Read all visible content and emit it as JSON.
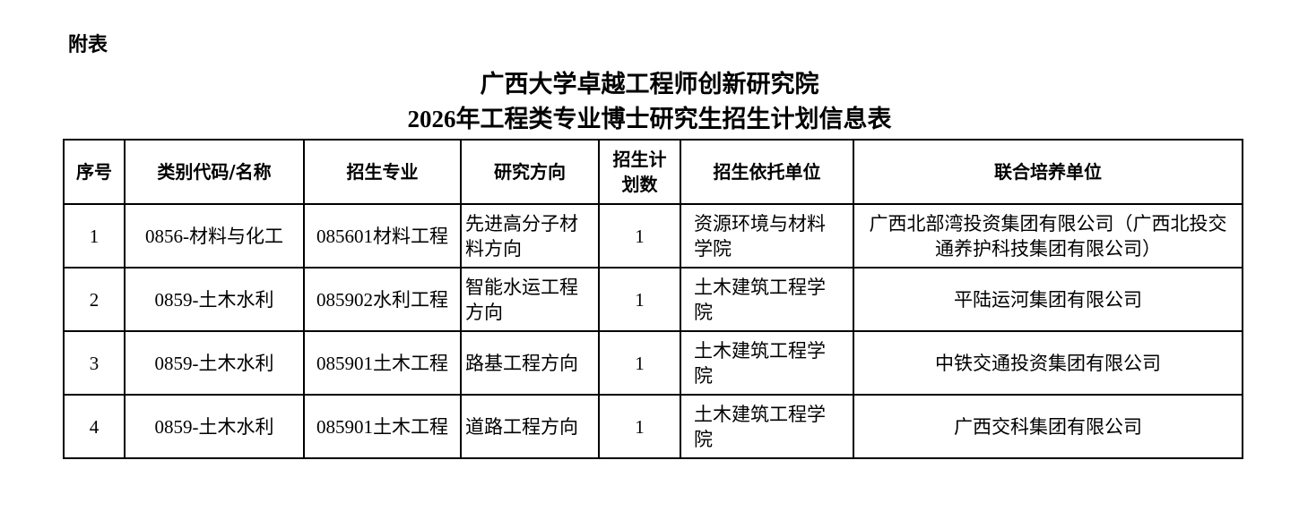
{
  "annex_label": "附表",
  "title_line1": "广西大学卓越工程师创新研究院",
  "title_line2": "2026年工程类专业博士研究生招生计划信息表",
  "table": {
    "headers": [
      "序号",
      "类别代码/名称",
      "招生专业",
      "研究方向",
      "招生计划数",
      "招生依托单位",
      "联合培养单位"
    ],
    "rows": [
      [
        "1",
        "0856-材料与化工",
        "085601材料工程",
        "先进高分子材料方向",
        "1",
        "资源环境与材料学院",
        "广西北部湾投资集团有限公司（广西北投交通养护科技集团有限公司）"
      ],
      [
        "2",
        "0859-土木水利",
        "085902水利工程",
        "智能水运工程方向",
        "1",
        "土木建筑工程学院",
        "平陆运河集团有限公司"
      ],
      [
        "3",
        "0859-土木水利",
        "085901土木工程",
        "路基工程方向",
        "1",
        "土木建筑工程学院",
        "中铁交通投资集团有限公司"
      ],
      [
        "4",
        "0859-土木水利",
        "085901土木工程",
        "道路工程方向",
        "1",
        "土木建筑工程学院",
        "广西交科集团有限公司"
      ]
    ]
  }
}
